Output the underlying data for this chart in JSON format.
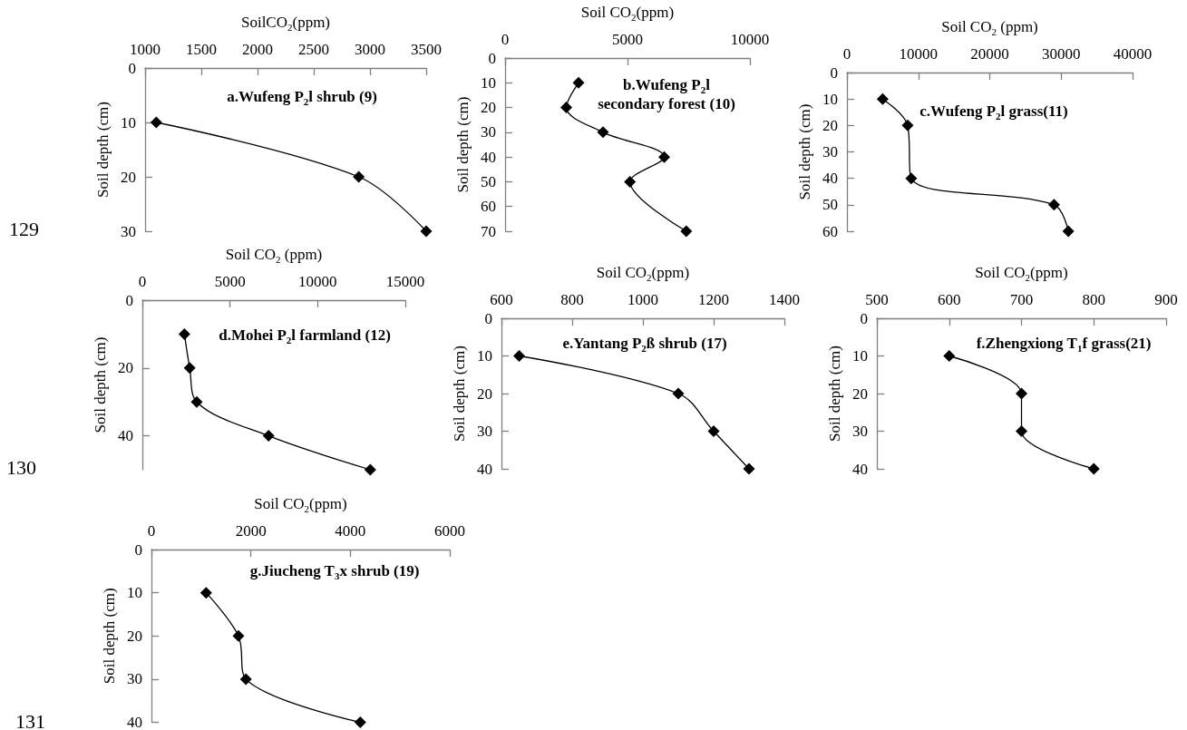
{
  "chart_data": [
    {
      "type": "line",
      "title": "a.Wufeng P$_{2}$l shrub (9)",
      "xlabel": "SoilCO$_{2}$(ppm)",
      "ylabel": "Soil depth (cm)",
      "x": [
        1100,
        2900,
        3500
      ],
      "values": [
        10,
        20,
        30
      ],
      "xlim": [
        1000,
        3500
      ],
      "xticks": [
        1000,
        1500,
        2000,
        2500,
        3000,
        3500
      ],
      "ylim": [
        30,
        0
      ],
      "yticks": [
        0,
        10,
        20,
        30
      ],
      "color": "#000000",
      "marker": "diamond",
      "annotations": [
        "129"
      ]
    },
    {
      "type": "line",
      "title": "b.Wufeng P$_{2}$l\nsecondary forest (10)",
      "xlabel": "Soil CO$_{2}$(ppm)",
      "ylabel": "Soil depth (cm)",
      "x": [
        3000,
        2500,
        4000,
        6500,
        5100,
        7400
      ],
      "values": [
        10,
        20,
        30,
        40,
        50,
        70
      ],
      "xlim": [
        0,
        10000
      ],
      "xticks": [
        0,
        5000,
        10000
      ],
      "ylim": [
        70,
        0
      ],
      "yticks": [
        0,
        10,
        20,
        30,
        40,
        50,
        60,
        70
      ],
      "color": "#000000",
      "marker": "diamond"
    },
    {
      "type": "line",
      "title": "c.Wufeng P$_{2}$l grass(11)",
      "xlabel": "Soil CO$_{2}$ (ppm)",
      "ylabel": "Soil depth (cm)",
      "x": [
        5000,
        8500,
        9000,
        29000,
        31000
      ],
      "values": [
        10,
        20,
        40,
        50,
        60
      ],
      "xlim": [
        0,
        40000
      ],
      "xticks": [
        0,
        10000,
        20000,
        30000,
        40000
      ],
      "ylim": [
        60,
        0
      ],
      "yticks": [
        0,
        10,
        20,
        30,
        40,
        50,
        60
      ],
      "color": "#000000",
      "marker": "diamond"
    },
    {
      "type": "line",
      "title": "d.Mohei P$_{2}$l farmland (12)",
      "xlabel": "Soil CO$_{2}$ (ppm)",
      "ylabel": "Soil depth (cm)",
      "x": [
        2400,
        2700,
        3100,
        7200,
        13000
      ],
      "values": [
        10,
        20,
        30,
        40,
        50
      ],
      "xlim": [
        0,
        15000
      ],
      "xticks": [
        0,
        5000,
        10000,
        15000
      ],
      "ylim": [
        50,
        0
      ],
      "yticks": [
        0,
        20,
        40
      ],
      "color": "#000000",
      "marker": "diamond",
      "annotations": [
        "130"
      ]
    },
    {
      "type": "line",
      "title": "e.Yantang P$_{2}$ß shrub (17)",
      "xlabel": "Soil CO$_{2}$(ppm)",
      "ylabel": "Soil depth (cm)",
      "x": [
        650,
        1100,
        1200,
        1300
      ],
      "values": [
        10,
        20,
        30,
        40
      ],
      "xlim": [
        600,
        1400
      ],
      "xticks": [
        600,
        800,
        1000,
        1200,
        1400
      ],
      "ylim": [
        40,
        0
      ],
      "yticks": [
        0,
        10,
        20,
        30,
        40
      ],
      "color": "#000000",
      "marker": "diamond"
    },
    {
      "type": "line",
      "title": "f.Zhengxiong T$_{1}$f grass(21)",
      "xlabel": "Soil CO$_{2}$(ppm)",
      "ylabel": "Soil depth (cm)",
      "x": [
        600,
        700,
        700,
        800
      ],
      "values": [
        10,
        20,
        30,
        40
      ],
      "xlim": [
        500,
        900
      ],
      "xticks": [
        500,
        600,
        700,
        800,
        900
      ],
      "ylim": [
        40,
        0
      ],
      "yticks": [
        0,
        10,
        20,
        30,
        40
      ],
      "color": "#000000",
      "marker": "diamond"
    },
    {
      "type": "line",
      "title": "g.Jiucheng T$_{3}$x shrub (19)",
      "xlabel": "Soil CO$_{2}$(ppm)",
      "ylabel": "Soil depth (cm)",
      "x": [
        1100,
        1750,
        1900,
        4200
      ],
      "values": [
        10,
        20,
        30,
        40
      ],
      "xlim": [
        0,
        6000
      ],
      "xticks": [
        0,
        2000,
        4000,
        6000
      ],
      "ylim": [
        40,
        0
      ],
      "yticks": [
        0,
        10,
        20,
        30,
        40
      ],
      "color": "#000000",
      "marker": "diamond",
      "annotations": [
        "131"
      ]
    }
  ]
}
